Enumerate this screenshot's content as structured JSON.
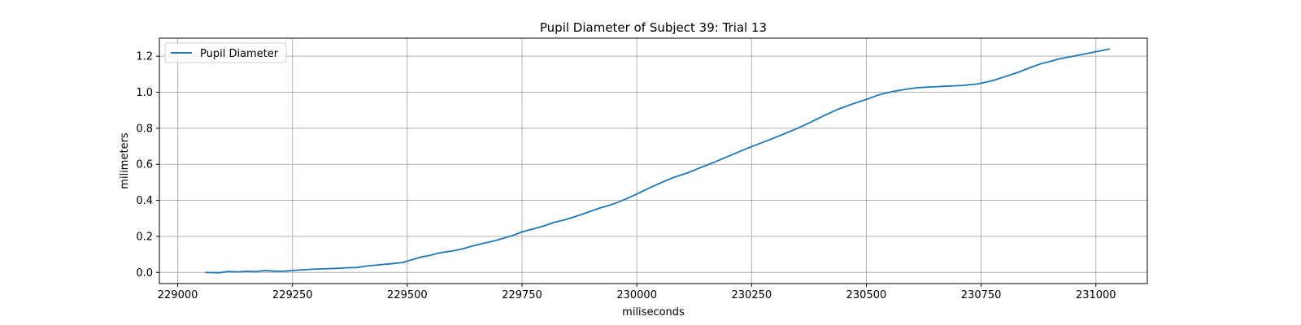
{
  "chart_data": {
    "type": "line",
    "title": "Pupil Diameter of Subject 39: Trial 13",
    "xlabel": "miliseconds",
    "ylabel": "milimeters",
    "xlim": [
      228960,
      231112
    ],
    "ylim": [
      -0.062,
      1.3
    ],
    "xticks": [
      229000,
      229250,
      229500,
      229750,
      230000,
      230250,
      230500,
      230750,
      231000
    ],
    "yticks": [
      0.0,
      0.2,
      0.4,
      0.6,
      0.8,
      1.0,
      1.2
    ],
    "grid": true,
    "legend_position": "upper-left",
    "colors": {
      "line": "#1f77b4",
      "grid": "#b0b0b0"
    },
    "series": [
      {
        "name": "Pupil Diameter",
        "x": [
          229060,
          229090,
          229110,
          229130,
          229150,
          229170,
          229190,
          229210,
          229230,
          229250,
          229270,
          229290,
          229310,
          229330,
          229350,
          229370,
          229390,
          229410,
          229430,
          229460,
          229490,
          229510,
          229530,
          229550,
          229570,
          229600,
          229620,
          229640,
          229660,
          229690,
          229710,
          229730,
          229750,
          229780,
          229800,
          229820,
          229840,
          229860,
          229880,
          229900,
          229920,
          229940,
          229960,
          229980,
          230000,
          230020,
          230050,
          230080,
          230110,
          230140,
          230170,
          230200,
          230230,
          230260,
          230290,
          230320,
          230350,
          230380,
          230410,
          230440,
          230470,
          230500,
          230530,
          230560,
          230590,
          230610,
          230630,
          230670,
          230710,
          230740,
          230760,
          230780,
          230800,
          230830,
          230860,
          230880,
          230900,
          230920,
          230950,
          230970,
          230990,
          231010,
          231030
        ],
        "y": [
          0.0,
          -0.002,
          0.005,
          0.003,
          0.006,
          0.004,
          0.01,
          0.007,
          0.006,
          0.01,
          0.014,
          0.017,
          0.019,
          0.021,
          0.023,
          0.026,
          0.027,
          0.035,
          0.04,
          0.047,
          0.055,
          0.07,
          0.085,
          0.095,
          0.108,
          0.12,
          0.13,
          0.145,
          0.158,
          0.175,
          0.19,
          0.205,
          0.225,
          0.245,
          0.26,
          0.278,
          0.29,
          0.305,
          0.322,
          0.34,
          0.358,
          0.372,
          0.39,
          0.412,
          0.435,
          0.46,
          0.495,
          0.527,
          0.552,
          0.583,
          0.613,
          0.645,
          0.677,
          0.708,
          0.737,
          0.768,
          0.8,
          0.835,
          0.873,
          0.907,
          0.935,
          0.96,
          0.988,
          1.005,
          1.018,
          1.025,
          1.028,
          1.033,
          1.038,
          1.045,
          1.055,
          1.068,
          1.085,
          1.11,
          1.14,
          1.158,
          1.17,
          1.185,
          1.2,
          1.21,
          1.22,
          1.23,
          1.24
        ]
      }
    ]
  }
}
